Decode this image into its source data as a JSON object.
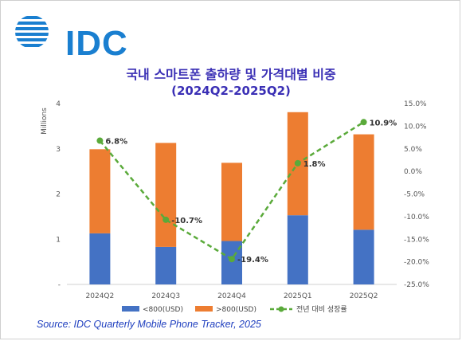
{
  "logo": {
    "text": "IDC",
    "color": "#1a7fd0"
  },
  "title": "국내 스마트폰 출하량 및 가격대별 비중",
  "subtitle": "(2024Q2-2025Q2)",
  "source": "Source: IDC Quarterly Mobile Phone Tracker, 2025",
  "chart_data": {
    "type": "bar",
    "stacked": true,
    "categories": [
      "2024Q2",
      "2024Q3",
      "2024Q4",
      "2025Q1",
      "2025Q2"
    ],
    "series": [
      {
        "name": "<800(USD)",
        "values": [
          1.13,
          0.83,
          0.96,
          1.53,
          1.21
        ],
        "color": "#4472c4"
      },
      {
        "name": ">800(USD)",
        "values": [
          1.86,
          2.3,
          1.73,
          2.28,
          2.11
        ],
        "color": "#ed7d31"
      }
    ],
    "line_series": {
      "name": "전년 대비 성장률",
      "values": [
        6.8,
        -10.7,
        -19.4,
        1.8,
        10.9
      ],
      "labels": [
        "6.8%",
        "-10.7%",
        "-19.4%",
        "1.8%",
        "10.9%"
      ],
      "color": "#5aaa3a"
    },
    "ylabel": "Millions",
    "ylim": [
      0,
      4
    ],
    "y_ticks": [
      "-",
      "1",
      "2",
      "3",
      "4"
    ],
    "y2lim": [
      -25,
      15
    ],
    "y2_ticks": [
      "-25.0%",
      "-20.0%",
      "-15.0%",
      "-10.0%",
      "-5.0%",
      "0.0%",
      "5.0%",
      "10.0%",
      "15.0%"
    ],
    "legend_position": "bottom",
    "grid": false
  }
}
